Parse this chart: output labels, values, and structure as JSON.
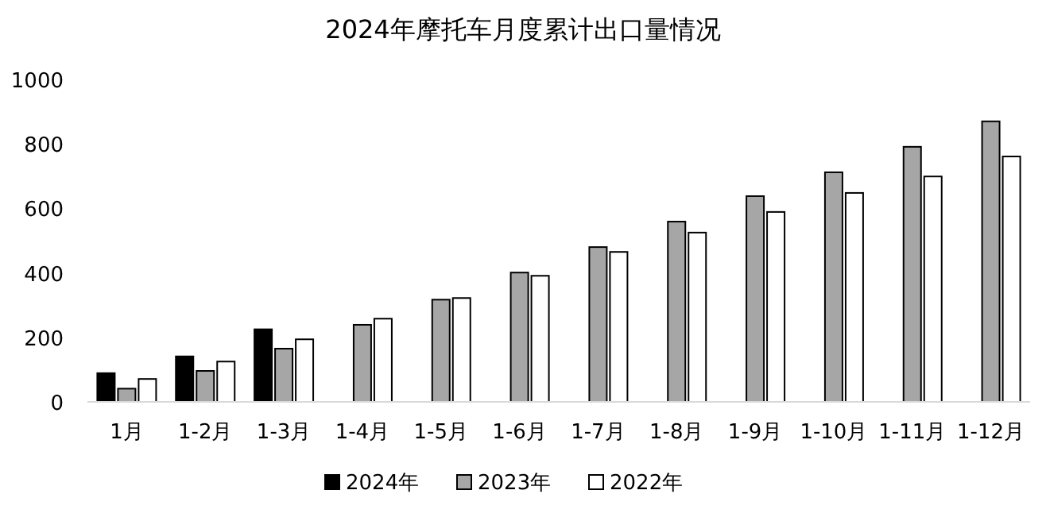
{
  "chart_data": {
    "type": "bar",
    "title": "2024年摩托车月度累计出口量情况",
    "categories": [
      "1月",
      "1-2月",
      "1-3月",
      "1-4月",
      "1-5月",
      "1-6月",
      "1-7月",
      "1-8月",
      "1-9月",
      "1-10月",
      "1-11月",
      "1-12月"
    ],
    "series": [
      {
        "name": "2024年",
        "color": "#000000",
        "values": [
          89,
          141,
          225,
          null,
          null,
          null,
          null,
          null,
          null,
          null,
          null,
          null
        ]
      },
      {
        "name": "2023年",
        "color": "#a6a6a6",
        "values": [
          41,
          96,
          165,
          239,
          317,
          401,
          480,
          559,
          638,
          712,
          791,
          870
        ]
      },
      {
        "name": "2022年",
        "color": "#ffffff",
        "values": [
          71,
          125,
          194,
          258,
          322,
          391,
          465,
          525,
          589,
          648,
          699,
          761
        ]
      }
    ],
    "ylim": [
      0,
      1000
    ],
    "yticks": [
      0,
      200,
      400,
      600,
      800,
      1000
    ],
    "legend": "bottom"
  }
}
